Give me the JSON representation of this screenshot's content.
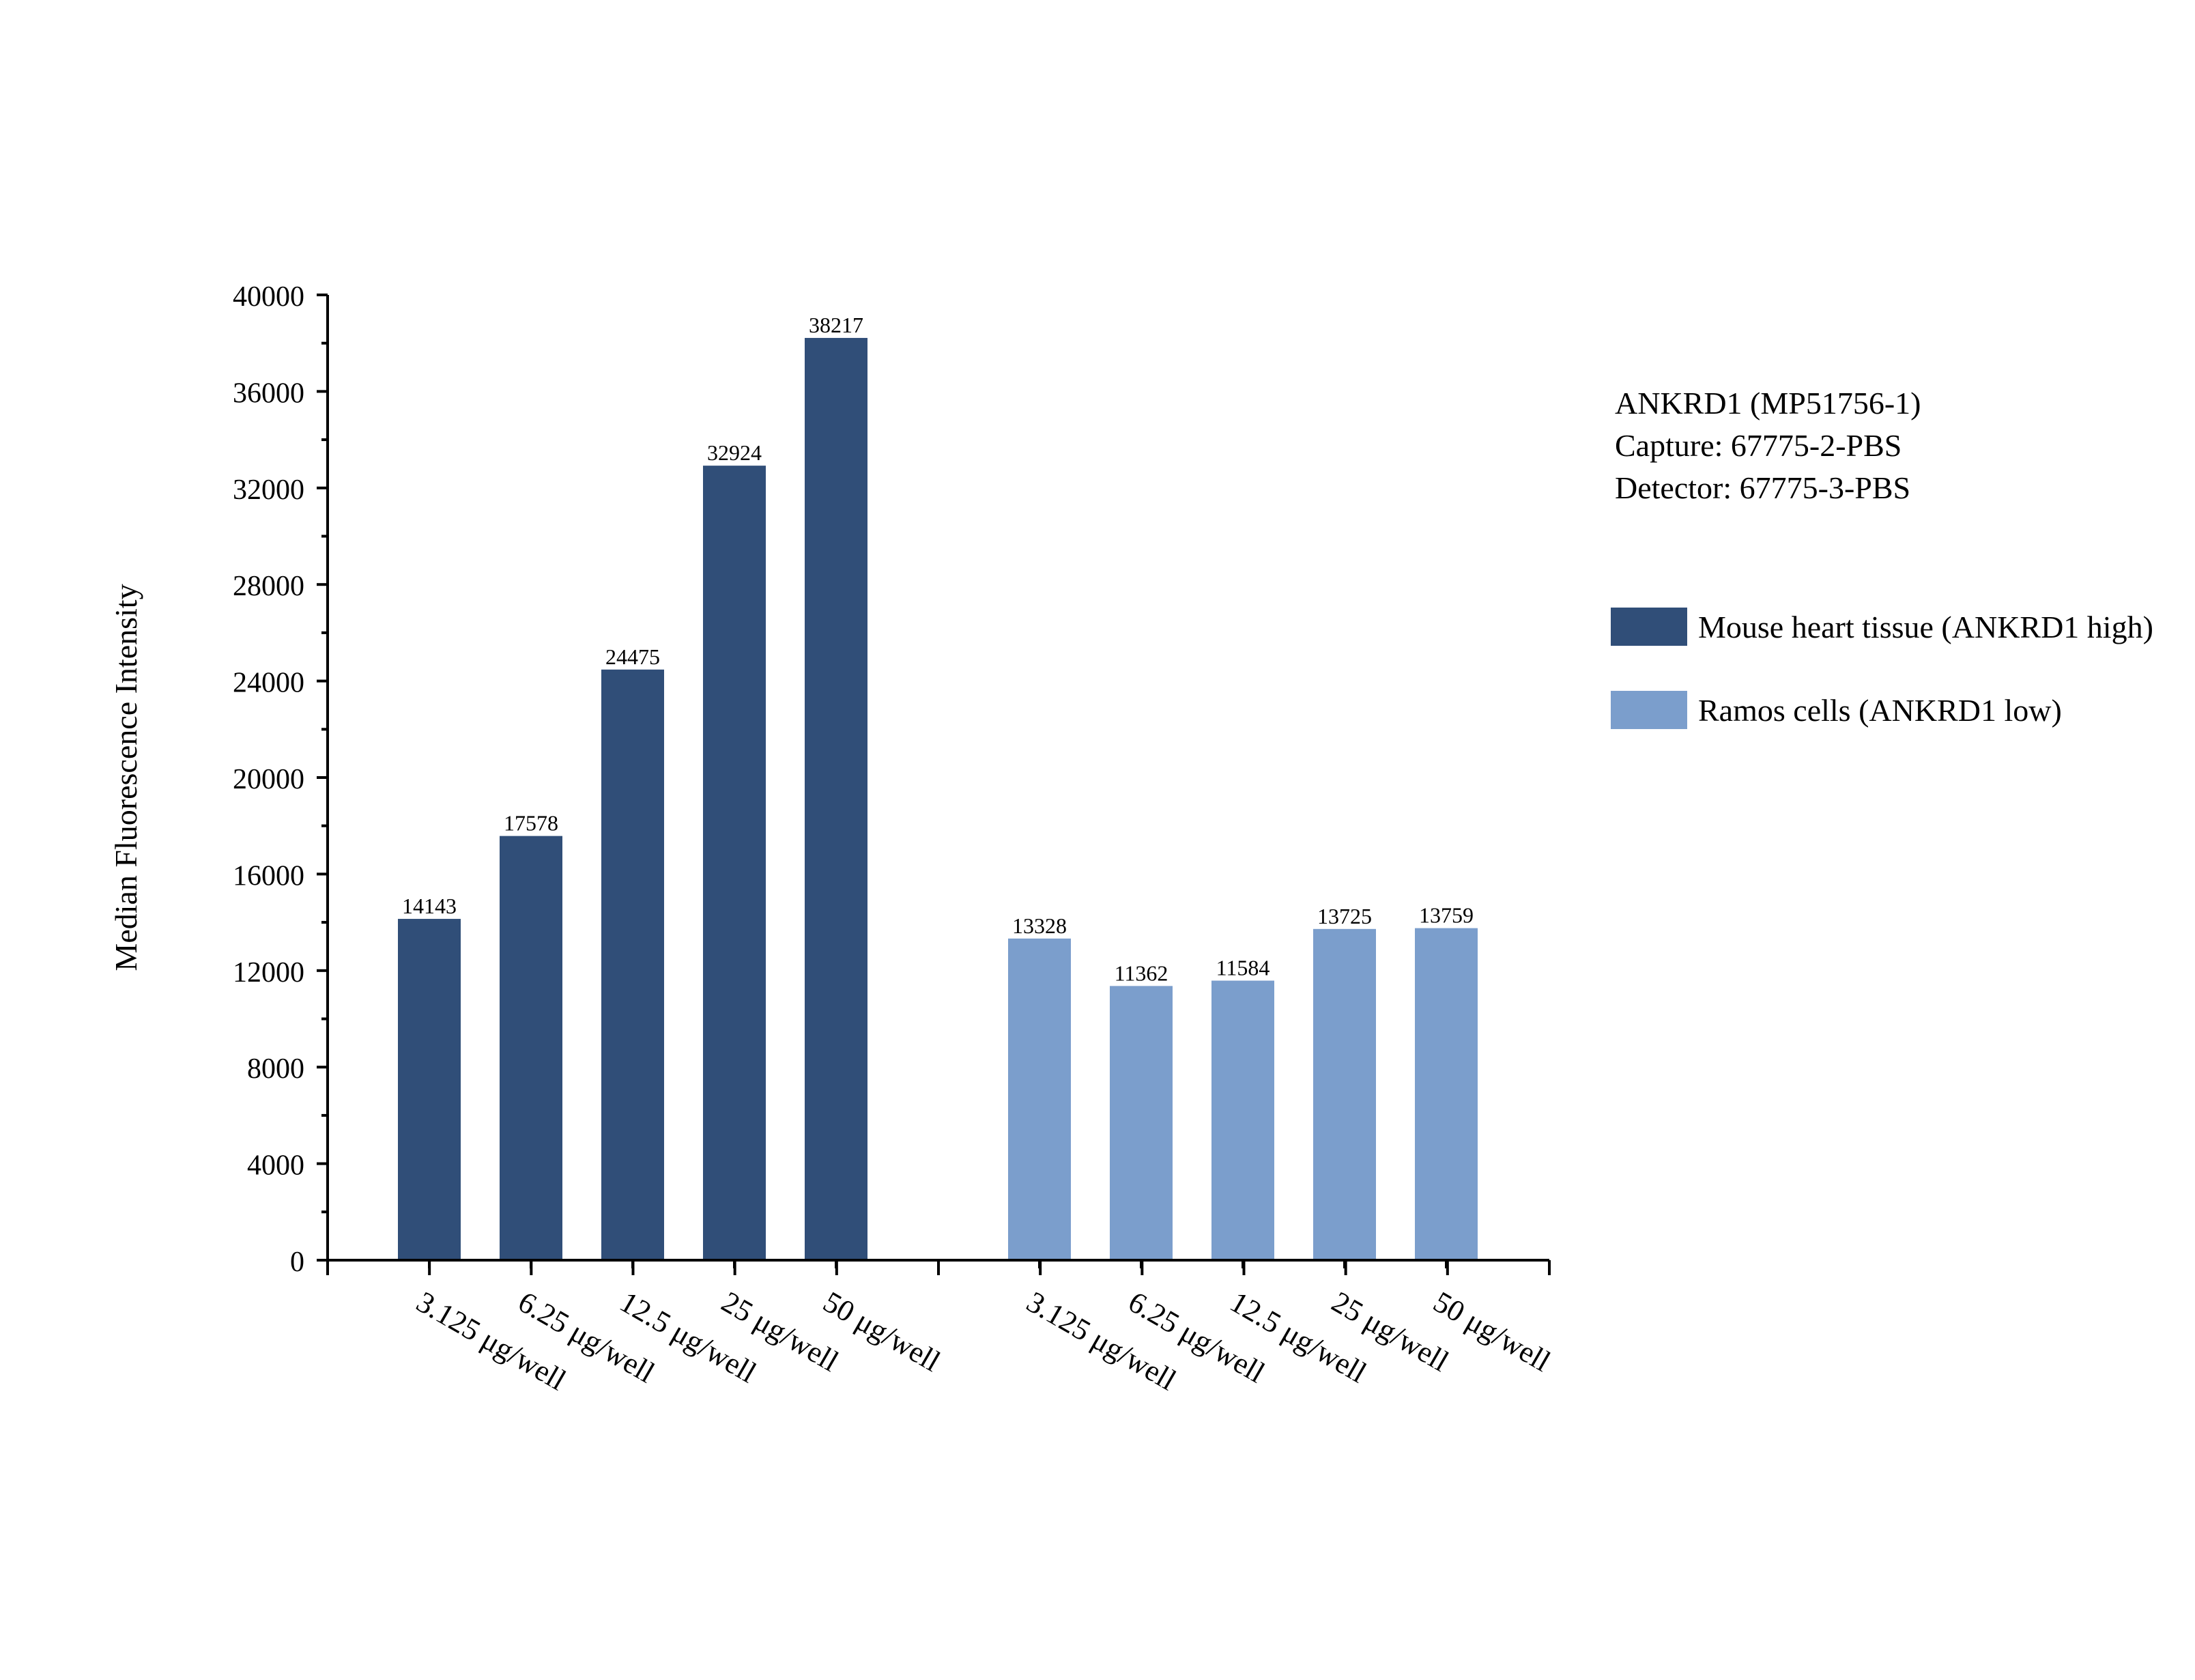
{
  "info": {
    "line1": "ANKRD1 (MP51756-1)",
    "line2": "Capture: 67775-2-PBS",
    "line3": "Detector: 67775-3-PBS"
  },
  "chart_data": {
    "type": "bar",
    "title": "",
    "xlabel": "",
    "ylabel": "Median Fluorescence Intensity",
    "ylim": [
      0,
      40000
    ],
    "yticks": [
      0,
      4000,
      8000,
      12000,
      16000,
      20000,
      24000,
      28000,
      32000,
      36000,
      40000
    ],
    "ytick_labels": [
      "0",
      "4000",
      "8000",
      "12000",
      "16000",
      "20000",
      "24000",
      "28000",
      "32000",
      "36000",
      "40000"
    ],
    "categories": [
      "3.125 μg/well",
      "6.25 μg/well",
      "12.5 μg/well",
      "25 μg/well",
      "50 μg/well"
    ],
    "legend_position": "right",
    "grid": false,
    "series": [
      {
        "name": "Mouse heart tissue (ANKRD1 high)",
        "color": "#304e78",
        "values": [
          14143,
          17578,
          24475,
          32924,
          38217
        ]
      },
      {
        "name": "Ramos cells (ANKRD1 low)",
        "color": "#7b9ecc",
        "values": [
          13328,
          11362,
          11584,
          13725,
          13759
        ]
      }
    ]
  }
}
